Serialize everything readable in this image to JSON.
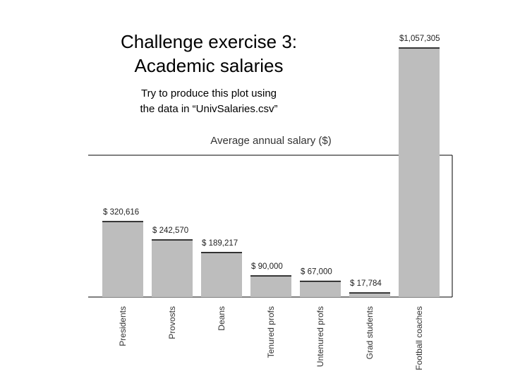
{
  "slide": {
    "title_line1": "Challenge exercise 3:",
    "title_line2": "Academic salaries",
    "subtitle_line1": "Try to produce this plot using",
    "subtitle_line2": "the data in “UnivSalaries.csv”"
  },
  "chart_data": {
    "type": "bar",
    "title": "Average annual salary ($)",
    "categories": [
      "Presidents",
      "Provosts",
      "Deans",
      "Tenured profs",
      "Untenured profs",
      "Grad students",
      "Football coaches"
    ],
    "values": [
      320616,
      242570,
      189217,
      90000,
      67000,
      17784,
      1057305
    ],
    "value_labels": [
      "$  320,616",
      "$  242,570",
      "$  189,217",
      "$   90,000",
      "$   67,000",
      "$   17,784",
      "$1,057,305"
    ],
    "bar_color": "#bdbdbd",
    "grid": false,
    "legend": "none"
  }
}
